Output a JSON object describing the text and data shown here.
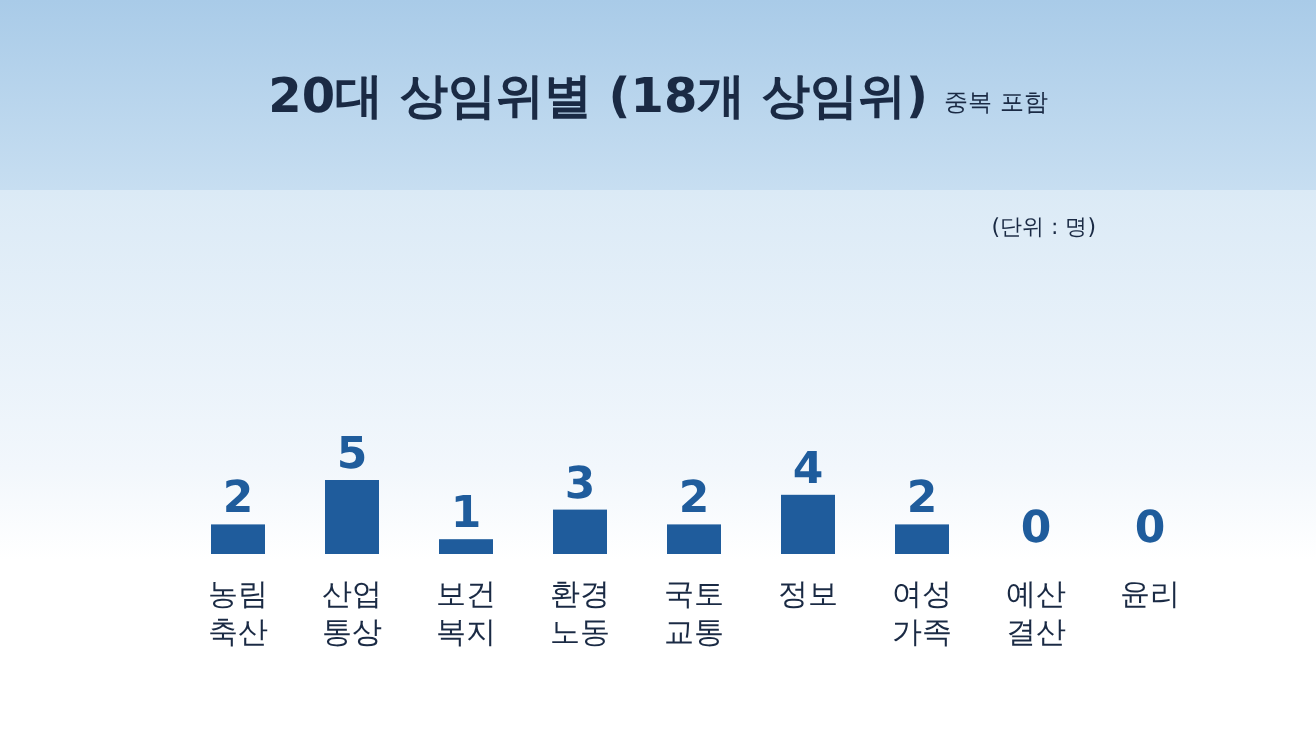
{
  "chart_data": {
    "type": "bar",
    "title": "20대 상임위별 (18개 상임위)",
    "subtitle": "중복 포함",
    "annotations": [
      "(단위 : 명)"
    ],
    "categories": [
      "농림\n축산",
      "산업\n통상",
      "보건\n복지",
      "환경\n노동",
      "국토\n교통",
      "정보",
      "여성\n가족",
      "예산\n결산",
      "윤리"
    ],
    "values": [
      2,
      5,
      1,
      3,
      2,
      4,
      2,
      0,
      0
    ],
    "color": "#1f5c9c",
    "data_labels": true
  }
}
